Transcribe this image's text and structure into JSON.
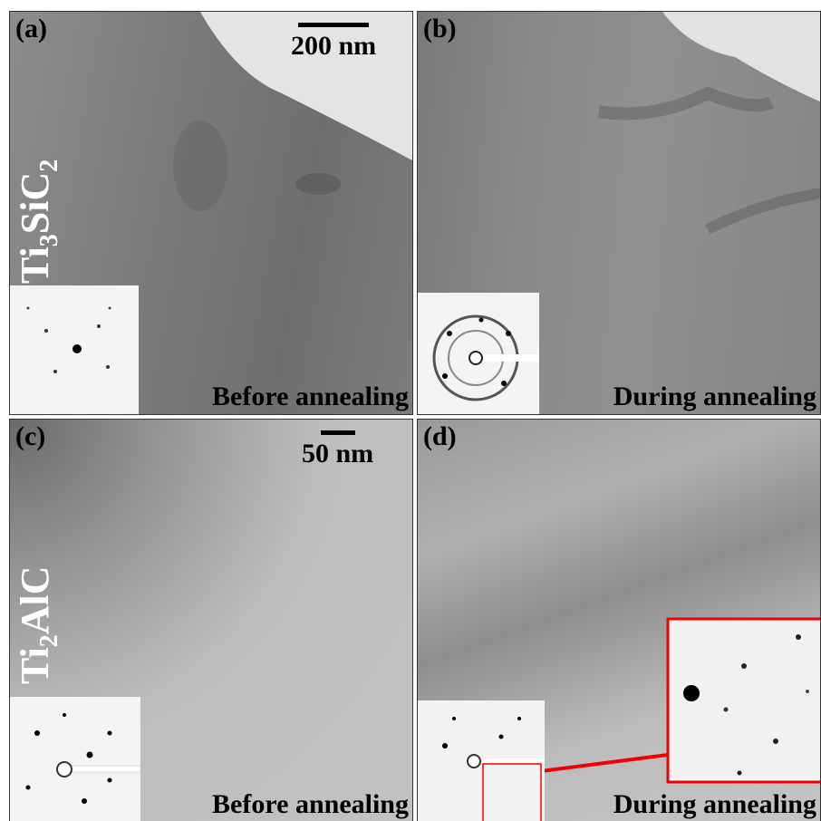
{
  "panels": [
    {
      "label": "(a)",
      "caption": "Before annealing",
      "scale_bar": "200 nm"
    },
    {
      "label": "(b)",
      "caption": "During annealing"
    },
    {
      "label": "(c)",
      "caption": "Before annealing",
      "scale_bar": "50 nm"
    },
    {
      "label": "(d)",
      "caption": "During annealing"
    }
  ],
  "materials": [
    {
      "parts": [
        "Ti",
        "3",
        "SiC",
        "2"
      ]
    },
    {
      "parts": [
        "Ti",
        "2",
        "AlC"
      ]
    }
  ]
}
